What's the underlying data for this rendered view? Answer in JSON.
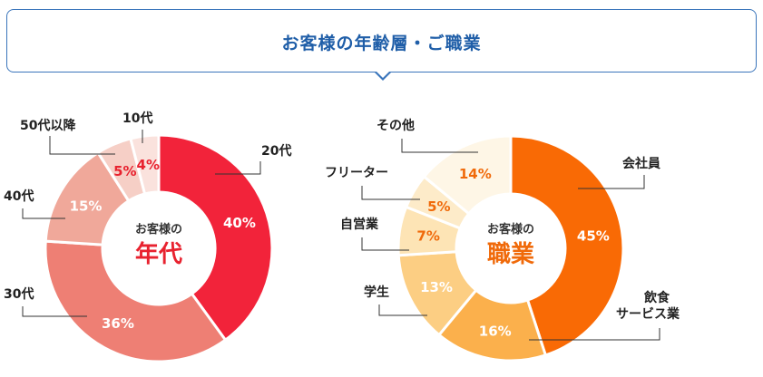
{
  "header": {
    "title": "お客様の年齢層・ご職業"
  },
  "chart_data": [
    {
      "type": "pie",
      "center_label": "お客様の",
      "center_title": "年代",
      "accent": "#e8222f",
      "categories": [
        "20代",
        "30代",
        "40代",
        "50代以降",
        "10代"
      ],
      "values": [
        40,
        36,
        15,
        5,
        4
      ],
      "value_labels": [
        "40%",
        "36%",
        "15%",
        "5%",
        "4%"
      ],
      "colors": [
        "#f2233a",
        "#ee7f74",
        "#f0a89a",
        "#f6cfc6",
        "#fae2dd"
      ],
      "label_colors": [
        "#ffffff",
        "#ffffff",
        "#ffffff",
        "#e8222f",
        "#e8222f"
      ]
    },
    {
      "type": "pie",
      "center_label": "お客様の",
      "center_title": "職業",
      "accent": "#f06a0a",
      "categories": [
        "会社員",
        "飲食サービス業",
        "学生",
        "自営業",
        "フリーター",
        "その他"
      ],
      "category_lines": [
        [
          "会社員"
        ],
        [
          "飲食",
          "サービス業"
        ],
        [
          "学生"
        ],
        [
          "自営業"
        ],
        [
          "フリーター"
        ],
        [
          "その他"
        ]
      ],
      "values": [
        45,
        16,
        13,
        7,
        5,
        14
      ],
      "value_labels": [
        "45%",
        "16%",
        "13%",
        "7%",
        "5%",
        "14%"
      ],
      "colors": [
        "#f96a05",
        "#fbb04c",
        "#fcce83",
        "#fde4b5",
        "#fdebc9",
        "#fef6e6"
      ],
      "label_colors": [
        "#ffffff",
        "#ffffff",
        "#ffffff",
        "#f06a0a",
        "#f06a0a",
        "#f06a0a"
      ]
    }
  ]
}
